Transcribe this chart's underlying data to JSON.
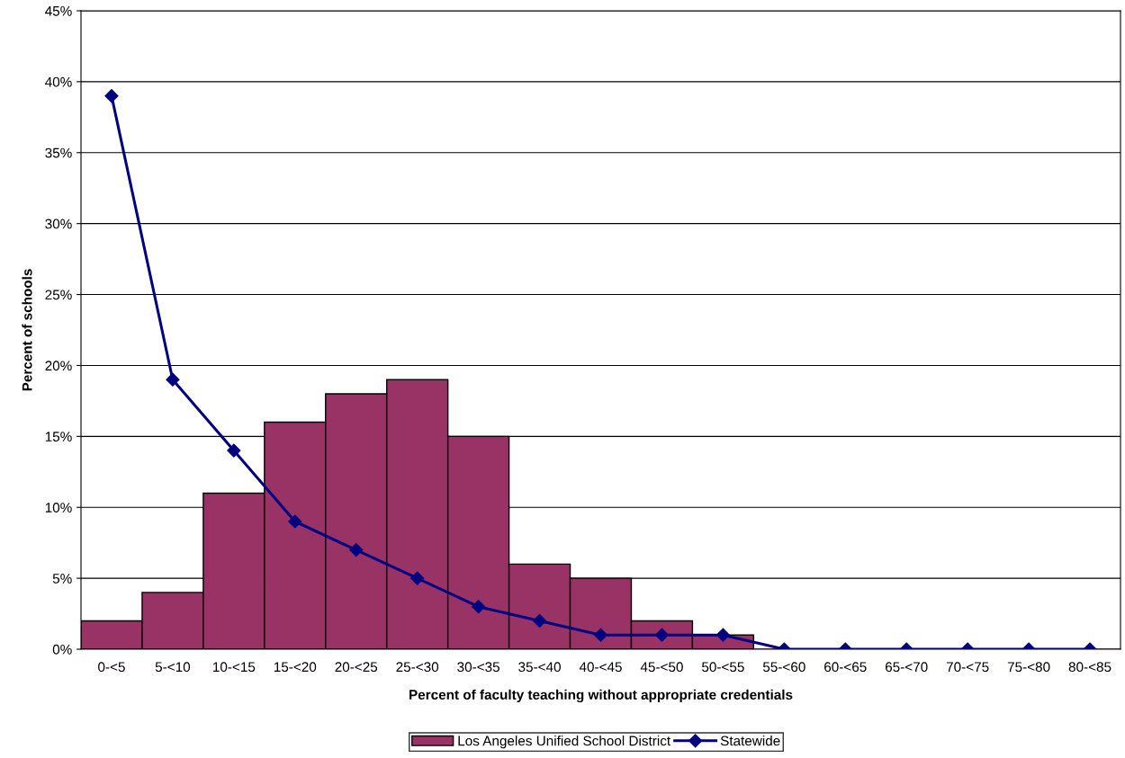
{
  "chart_data": {
    "type": "bar",
    "xlabel": "Percent of faculty teaching without appropriate credentials",
    "ylabel": "Percent of schools",
    "categories": [
      "0-<5",
      "5-<10",
      "10-<15",
      "15-<20",
      "20-<25",
      "25-<30",
      "30-<35",
      "35-<40",
      "40-<45",
      "45-<50",
      "50-<55",
      "55-<60",
      "60-<65",
      "65-<70",
      "70-<75",
      "75-<80",
      "80-<85"
    ],
    "series": [
      {
        "name": "Los Angeles Unified School District",
        "color": "#993366",
        "values": [
          2,
          4,
          11,
          16,
          18,
          19,
          15,
          6,
          5,
          2,
          1,
          0,
          0,
          0,
          0,
          0,
          0
        ]
      },
      {
        "name": "Statewide",
        "type": "line",
        "color": "#000080",
        "marker": "diamond",
        "values": [
          39,
          19,
          14,
          9,
          7,
          5,
          3,
          2,
          1,
          1,
          1,
          0,
          0,
          0,
          0,
          0,
          0
        ]
      }
    ],
    "ylim": [
      0,
      45
    ],
    "yticks": [
      {
        "value": 0,
        "label": "0%"
      },
      {
        "value": 5,
        "label": "5%"
      },
      {
        "value": 10,
        "label": "10%"
      },
      {
        "value": 15,
        "label": "15%"
      },
      {
        "value": 20,
        "label": "20%"
      },
      {
        "value": 25,
        "label": "25%"
      },
      {
        "value": 30,
        "label": "30%"
      },
      {
        "value": 35,
        "label": "35%"
      },
      {
        "value": 40,
        "label": "40%"
      },
      {
        "value": 45,
        "label": "45%"
      }
    ],
    "grid": "y",
    "legend": "bottom"
  }
}
